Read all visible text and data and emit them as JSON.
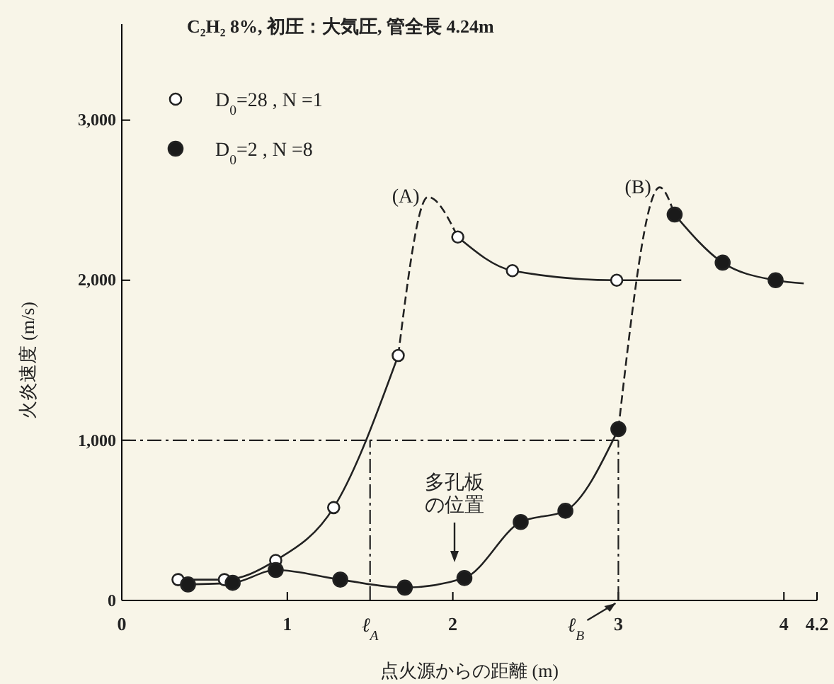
{
  "chart_data": {
    "type": "scatter",
    "title": "C₂H₂ 8%, 初圧：大気圧, 管全長 4.24m",
    "xlabel": "点火源からの距離 (m)",
    "ylabel": "火炎速度 (m/s)",
    "xlim": [
      0,
      4.2
    ],
    "xticks": [
      0,
      1,
      2,
      3,
      4,
      4.2
    ],
    "ylim": [
      0,
      3600
    ],
    "yticks": [
      0,
      {
        "value": 1000,
        "label": "1,000"
      },
      {
        "value": 2000,
        "label": "2,000"
      },
      {
        "value": 3000,
        "label": "3,000"
      }
    ],
    "grid": false,
    "legend": "top left",
    "series": [
      {
        "type": "line",
        "marker": "none",
        "color": "#222222",
        "line_style": "solid",
        "x": [
          0.34,
          0.62,
          0.93,
          1.28,
          1.67
        ],
        "values": [
          130,
          130,
          250,
          580,
          1530
        ]
      },
      {
        "type": "line",
        "marker": "none",
        "color": "#222222",
        "line_style": "dashed",
        "x": [
          1.67,
          1.85,
          2.03
        ],
        "values": [
          1530,
          2520,
          2270
        ]
      },
      {
        "type": "line",
        "marker": "none",
        "color": "#222222",
        "line_style": "solid",
        "x": [
          2.03,
          2.36,
          2.99,
          3.38
        ],
        "values": [
          2270,
          2060,
          2000,
          2000
        ]
      },
      {
        "type": "line",
        "marker": "none",
        "color": "#222222",
        "line_style": "solid",
        "x": [
          0.4,
          0.67,
          0.93,
          1.32,
          1.71,
          2.07,
          2.41,
          2.68,
          3.0
        ],
        "values": [
          100,
          110,
          190,
          130,
          80,
          140,
          490,
          560,
          1070
        ]
      },
      {
        "type": "line",
        "marker": "none",
        "color": "#222222",
        "line_style": "dashed",
        "x": [
          3.0,
          3.25,
          3.34
        ],
        "values": [
          1070,
          2580,
          2410
        ]
      },
      {
        "type": "line",
        "marker": "none",
        "color": "#222222",
        "line_style": "solid",
        "x": [
          3.34,
          3.63,
          3.95,
          4.12
        ],
        "values": [
          2410,
          2110,
          2000,
          1980
        ]
      },
      {
        "marker": "circle",
        "name": "D$_{0}$=28 , N =1",
        "color": "#ffffff",
        "x": [
          0.34,
          0.62,
          0.93,
          1.28,
          1.67,
          2.03,
          2.36,
          2.99
        ],
        "values": [
          130,
          130,
          250,
          580,
          1530,
          2270,
          2060,
          2000
        ]
      },
      {
        "marker": "circle",
        "name": "D$_{0}$=2 , N =8",
        "color": "#1a1a1a",
        "x": [
          0.4,
          0.67,
          0.93,
          1.32,
          1.71,
          2.07,
          2.41,
          2.68,
          3.0,
          3.34,
          3.63,
          3.95
        ],
        "values": [
          100,
          110,
          190,
          130,
          80,
          140,
          490,
          560,
          1070,
          2410,
          2110,
          2000
        ]
      }
    ],
    "ref_lines": [
      {
        "axis": "y",
        "value": 1000,
        "label": null,
        "line_style": "dashed"
      },
      {
        "axis": "x",
        "value": 1.5,
        "label": "ℓ$_{A}$",
        "line_style": "dashed"
      },
      {
        "axis": "x",
        "value": 3,
        "label": "ℓ$_{B}$",
        "line_style": "dashed"
      }
    ],
    "annotations": [
      {
        "text": "(A)",
        "x": 1.85,
        "y": 2520
      },
      {
        "text": "(B)",
        "x": 3.25,
        "y": 2580
      },
      "多孔板の位置"
    ]
  }
}
